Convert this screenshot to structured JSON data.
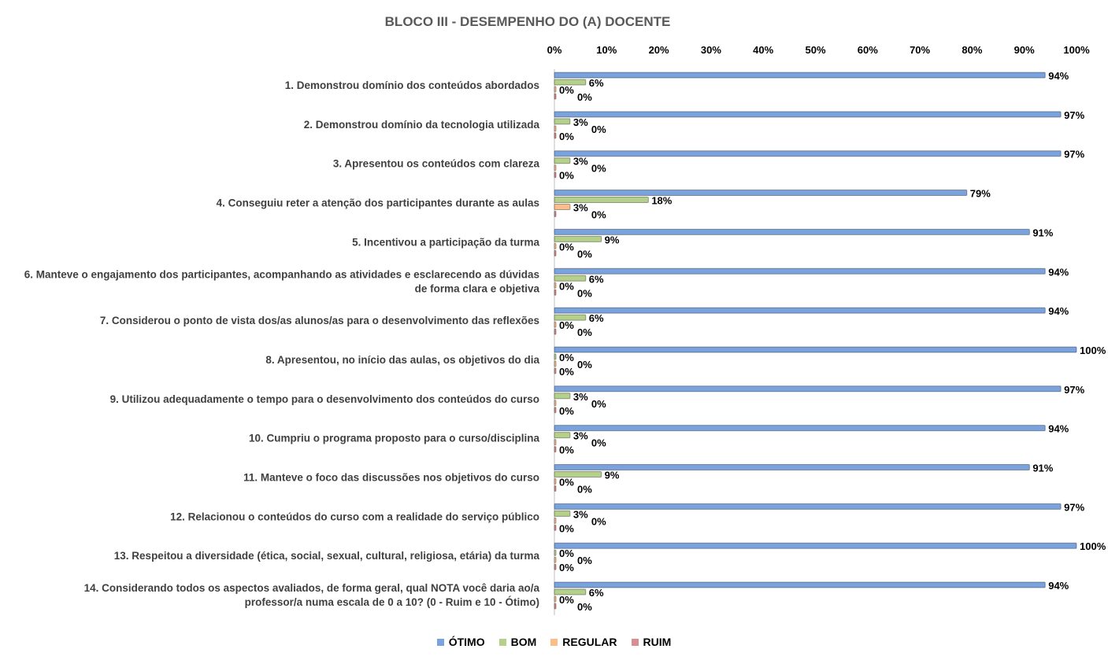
{
  "chart_data": {
    "type": "bar",
    "orientation": "horizontal",
    "title": "BLOCO III - DESEMPENHO DO (A) DOCENTE",
    "xlabel": "",
    "ylabel": "",
    "xlim": [
      0,
      100
    ],
    "x_ticks": [
      "0%",
      "10%",
      "20%",
      "30%",
      "40%",
      "50%",
      "60%",
      "70%",
      "80%",
      "90%",
      "100%"
    ],
    "legend_position": "bottom",
    "categories": [
      "1. Demonstrou domínio dos conteúdos abordados",
      "2. Demonstrou domínio da tecnologia utilizada",
      "3. Apresentou os conteúdos com clareza",
      "4. Conseguiu reter a atenção dos participantes durante as aulas",
      "5. Incentivou a participação da turma",
      "6. Manteve o engajamento dos participantes, acompanhando as atividades e esclarecendo as dúvidas|de forma clara e objetiva",
      "7. Considerou o ponto de vista dos/as alunos/as para o desenvolvimento das reflexões",
      "8. Apresentou, no início das aulas, os objetivos do dia",
      "9. Utilizou adequadamente o tempo para o desenvolvimento dos conteúdos do curso",
      "10. Cumpriu o programa proposto para o curso/disciplina",
      "11. Manteve o foco das discussões nos objetivos do curso",
      "12. Relacionou o conteúdos do curso com a realidade do serviço público",
      "13. Respeitou a diversidade (ética, social, sexual, cultural, religiosa, etária) da turma",
      "14. Considerando todos os aspectos avaliados, de forma geral, qual NOTA você daria ao/a|professor/a numa escala de 0 a 10? (0 - Ruim e 10 - Ótimo)"
    ],
    "series": [
      {
        "name": "ÓTIMO",
        "color": "#7aa3de",
        "values": [
          94,
          97,
          97,
          79,
          91,
          94,
          94,
          100,
          97,
          94,
          91,
          97,
          100,
          94
        ]
      },
      {
        "name": "BOM",
        "color": "#b5d08a",
        "values": [
          6,
          3,
          3,
          18,
          9,
          6,
          6,
          0,
          3,
          3,
          9,
          3,
          0,
          6
        ]
      },
      {
        "name": "REGULAR",
        "color": "#f9be8a",
        "values": [
          0,
          0,
          0,
          3,
          0,
          0,
          0,
          0,
          0,
          0,
          0,
          0,
          0,
          0
        ]
      },
      {
        "name": "RUIM",
        "color": "#d98f8f",
        "values": [
          0,
          0,
          0,
          0,
          0,
          0,
          0,
          0,
          0,
          0,
          0,
          0,
          0,
          0
        ]
      }
    ],
    "value_suffix": "%"
  }
}
